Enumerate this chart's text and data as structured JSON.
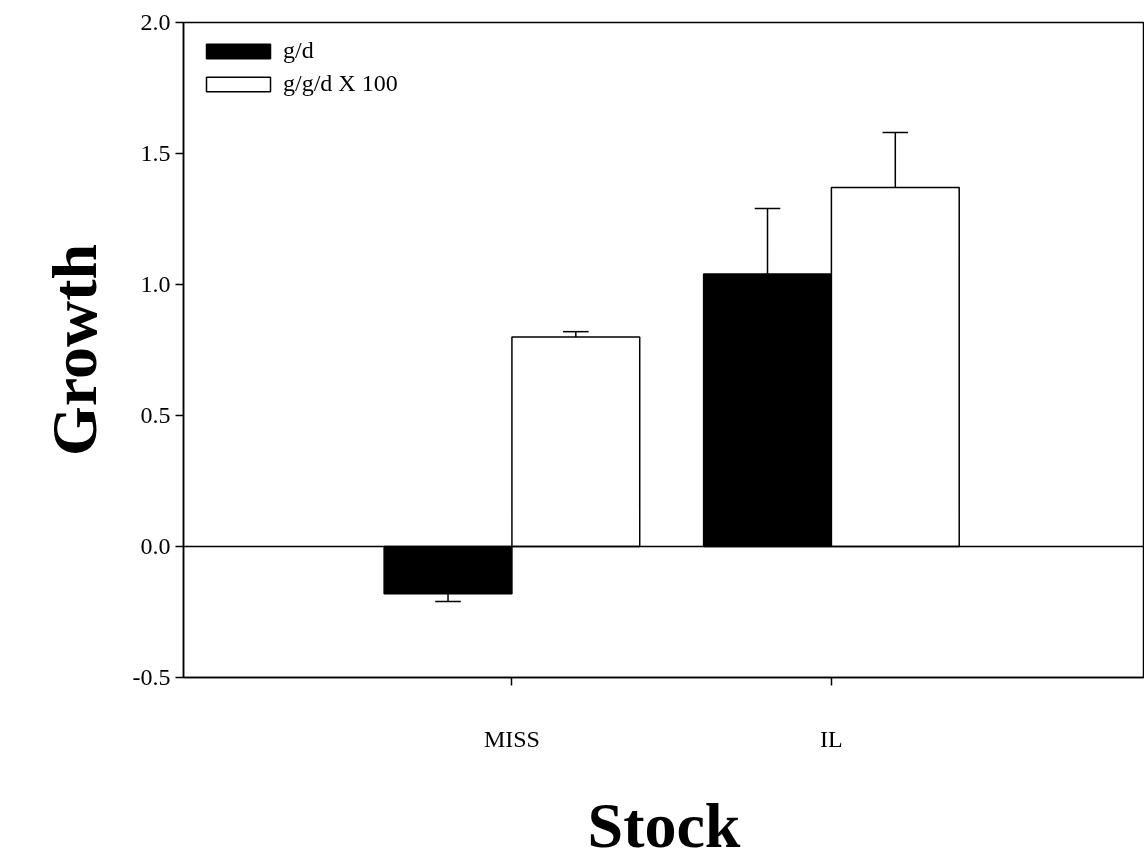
{
  "chart_data": {
    "type": "bar",
    "xlabel": "Stock",
    "ylabel": "Growth",
    "categories": [
      "MISS",
      "IL"
    ],
    "series": [
      {
        "name": "g/d",
        "color": "#000000",
        "values": [
          -0.18,
          1.04
        ],
        "errors": [
          [
            -0.21,
            -0.18
          ],
          [
            1.04,
            1.29
          ]
        ]
      },
      {
        "name": "g/g/d X 100",
        "color": "#ffffff",
        "values": [
          0.8,
          1.37
        ],
        "errors": [
          [
            0.8,
            0.82
          ],
          [
            1.37,
            1.58
          ]
        ]
      }
    ],
    "ylim": [
      -0.5,
      2.0
    ],
    "yticks": [
      {
        "value": -0.5,
        "label": "-0.5"
      },
      {
        "value": 0,
        "label": "0.0"
      },
      {
        "value": 0.5,
        "label": "0.5"
      },
      {
        "value": 1,
        "label": "1.0"
      },
      {
        "value": 1.5,
        "label": "1.5"
      },
      {
        "value": 2,
        "label": "2.0"
      }
    ],
    "ref_lines": [
      {
        "axis": "y",
        "value": 0
      }
    ],
    "grid": false,
    "legend": "top left"
  }
}
